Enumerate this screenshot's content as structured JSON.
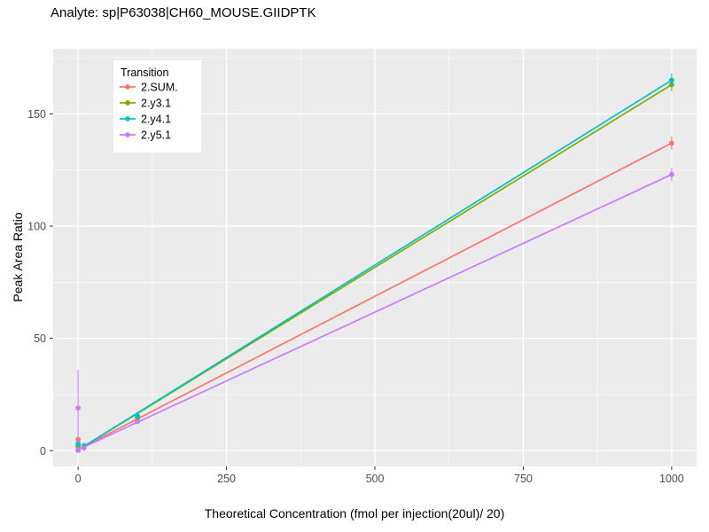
{
  "chart_data": {
    "type": "line",
    "title": "Analyte: sp|P63038|CH60_MOUSE.GIIDPTK",
    "xlabel": "Theoretical Concentration (fmol per injection(20ul)/ 20)",
    "ylabel": "Peak Area Ratio",
    "xlim": [
      -42,
      1042
    ],
    "ylim": [
      -7,
      179
    ],
    "xticks": [
      0,
      250,
      500,
      750,
      1000
    ],
    "yticks": [
      0,
      50,
      100,
      150
    ],
    "minor_xticks": [
      125,
      375,
      625,
      875
    ],
    "minor_yticks": [
      25,
      75,
      125,
      175
    ],
    "grid": true,
    "panel_background": "#EBEBEB",
    "grid_color": "#FFFFFF",
    "tick_color": "#333333",
    "tick_label_color": "#4D4D4D",
    "legend": {
      "title": "Transition",
      "position": "top-left-inset",
      "background": "#FFFFFF"
    },
    "series": [
      {
        "name": "2.SUM.",
        "color": "#F8766D",
        "line": {
          "x": [
            0,
            1000
          ],
          "y": [
            0.5,
            137
          ]
        },
        "points": [
          {
            "x": 0,
            "y": 5,
            "err": [
              3.5,
              6.5
            ]
          },
          {
            "x": 0,
            "y": 0.3
          },
          {
            "x": 10,
            "y": 1.5
          },
          {
            "x": 100,
            "y": 15,
            "err": [
              13.5,
              16.5
            ]
          },
          {
            "x": 1000,
            "y": 137,
            "err": [
              134,
              140
            ]
          }
        ]
      },
      {
        "name": "2.y3.1",
        "color": "#7CAE00",
        "line": {
          "x": [
            0,
            1000
          ],
          "y": [
            0.3,
            163
          ]
        },
        "points": [
          {
            "x": 0,
            "y": 2,
            "err": [
              1,
              3
            ]
          },
          {
            "x": 0,
            "y": 0.2
          },
          {
            "x": 10,
            "y": 1.8
          },
          {
            "x": 100,
            "y": 14.5
          },
          {
            "x": 1000,
            "y": 163,
            "err": [
              160,
              166
            ]
          }
        ]
      },
      {
        "name": "2.y4.1",
        "color": "#00BFC4",
        "line": {
          "x": [
            0,
            1000
          ],
          "y": [
            0.3,
            165
          ]
        },
        "points": [
          {
            "x": 0,
            "y": 3,
            "err": [
              2,
              4
            ]
          },
          {
            "x": 0,
            "y": 0.3
          },
          {
            "x": 10,
            "y": 2.2
          },
          {
            "x": 100,
            "y": 15.5
          },
          {
            "x": 1000,
            "y": 165,
            "err": [
              162,
              168
            ]
          }
        ]
      },
      {
        "name": "2.y5.1",
        "color": "#C77CFF",
        "line": {
          "x": [
            0,
            1000
          ],
          "y": [
            0.4,
            123
          ]
        },
        "points": [
          {
            "x": 0,
            "y": 19,
            "err": [
              3,
              36
            ]
          },
          {
            "x": 0,
            "y": 0.4
          },
          {
            "x": 10,
            "y": 1.2
          },
          {
            "x": 100,
            "y": 13,
            "err": [
              12,
              14
            ]
          },
          {
            "x": 1000,
            "y": 123,
            "err": [
              120,
              126
            ]
          }
        ]
      }
    ]
  }
}
